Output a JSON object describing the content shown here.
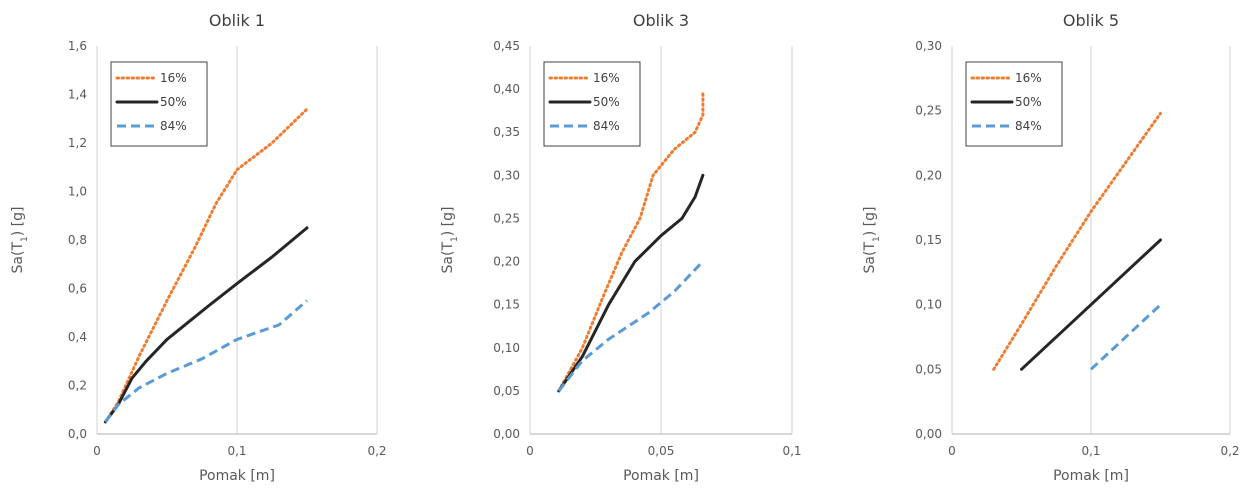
{
  "chart_data": [
    {
      "type": "line",
      "title": "Oblik 1",
      "xlabel": "Pomak [m]",
      "ylabel_main": "Sa(T",
      "ylabel_sub": "1",
      "ylabel_tail": ") [g]",
      "xlim": [
        0,
        0.2
      ],
      "ylim": [
        0,
        1.6
      ],
      "x_ticks": [
        0,
        0.1,
        0.2
      ],
      "x_tick_labels": [
        "0",
        "0,1",
        "0,2"
      ],
      "y_ticks": [
        0,
        0.2,
        0.4,
        0.6,
        0.8,
        1.0,
        1.2,
        1.4,
        1.6
      ],
      "y_tick_labels": [
        "0,0",
        "0,2",
        "0,4",
        "0,6",
        "0,8",
        "1,0",
        "1,2",
        "1,4",
        "1,6"
      ],
      "grid": "vertical",
      "legend_position": "top-left",
      "series": [
        {
          "name": "16%",
          "color": "#ED7D31",
          "style": "dotted",
          "x": [
            0.006,
            0.015,
            0.03,
            0.05,
            0.07,
            0.085,
            0.1,
            0.125,
            0.15
          ],
          "y": [
            0.05,
            0.13,
            0.32,
            0.55,
            0.77,
            0.95,
            1.09,
            1.2,
            1.34
          ]
        },
        {
          "name": "50%",
          "color": "#262626",
          "style": "solid",
          "x": [
            0.006,
            0.015,
            0.025,
            0.035,
            0.05,
            0.065,
            0.08,
            0.1,
            0.125,
            0.15
          ],
          "y": [
            0.05,
            0.12,
            0.23,
            0.3,
            0.39,
            0.46,
            0.53,
            0.62,
            0.73,
            0.85
          ]
        },
        {
          "name": "84%",
          "color": "#5B9BD5",
          "style": "dashed",
          "x": [
            0.006,
            0.015,
            0.03,
            0.05,
            0.075,
            0.1,
            0.13,
            0.15
          ],
          "y": [
            0.05,
            0.12,
            0.19,
            0.25,
            0.31,
            0.39,
            0.45,
            0.55
          ]
        }
      ]
    },
    {
      "type": "line",
      "title": "Oblik 3",
      "xlabel": "Pomak [m]",
      "ylabel_main": "Sa(T",
      "ylabel_sub": "1",
      "ylabel_tail": ") [g]",
      "xlim": [
        0,
        0.1
      ],
      "ylim": [
        0,
        0.45
      ],
      "x_ticks": [
        0,
        0.05,
        0.1
      ],
      "x_tick_labels": [
        "0",
        "0,05",
        "0,1"
      ],
      "y_ticks": [
        0,
        0.05,
        0.1,
        0.15,
        0.2,
        0.25,
        0.3,
        0.35,
        0.4,
        0.45
      ],
      "y_tick_labels": [
        "0,00",
        "0,05",
        "0,10",
        "0,15",
        "0,20",
        "0,25",
        "0,30",
        "0,35",
        "0,40",
        "0,45"
      ],
      "grid": "vertical",
      "legend_position": "top-left",
      "series": [
        {
          "name": "16%",
          "color": "#ED7D31",
          "style": "dotted",
          "x": [
            0.011,
            0.02,
            0.028,
            0.035,
            0.042,
            0.047,
            0.055,
            0.063,
            0.066,
            0.066
          ],
          "y": [
            0.05,
            0.1,
            0.16,
            0.21,
            0.25,
            0.3,
            0.33,
            0.35,
            0.37,
            0.395
          ]
        },
        {
          "name": "50%",
          "color": "#262626",
          "style": "solid",
          "x": [
            0.011,
            0.02,
            0.03,
            0.04,
            0.05,
            0.058,
            0.063,
            0.066
          ],
          "y": [
            0.05,
            0.09,
            0.15,
            0.2,
            0.23,
            0.25,
            0.275,
            0.3
          ]
        },
        {
          "name": "84%",
          "color": "#5B9BD5",
          "style": "dashed",
          "x": [
            0.011,
            0.02,
            0.03,
            0.045,
            0.055,
            0.065
          ],
          "y": [
            0.05,
            0.085,
            0.11,
            0.14,
            0.165,
            0.197
          ]
        }
      ]
    },
    {
      "type": "line",
      "title": "Oblik 5",
      "xlabel": "Pomak [m]",
      "ylabel_main": "Sa(T",
      "ylabel_sub": "1",
      "ylabel_tail": ") [g]",
      "xlim": [
        0,
        0.2
      ],
      "ylim": [
        0,
        0.3
      ],
      "x_ticks": [
        0,
        0.1,
        0.2
      ],
      "x_tick_labels": [
        "0",
        "0,1",
        "0,2"
      ],
      "y_ticks": [
        0,
        0.05,
        0.1,
        0.15,
        0.2,
        0.25,
        0.3
      ],
      "y_tick_labels": [
        "0,00",
        "0,05",
        "0,10",
        "0,15",
        "0,20",
        "0,25",
        "0,30"
      ],
      "grid": "vertical",
      "legend_position": "top-left",
      "series": [
        {
          "name": "16%",
          "color": "#ED7D31",
          "style": "dotted",
          "x": [
            0.03,
            0.05,
            0.075,
            0.1,
            0.15
          ],
          "y": [
            0.05,
            0.085,
            0.13,
            0.172,
            0.248
          ]
        },
        {
          "name": "50%",
          "color": "#262626",
          "style": "solid",
          "x": [
            0.05,
            0.1,
            0.15
          ],
          "y": [
            0.05,
            0.1,
            0.15
          ]
        },
        {
          "name": "84%",
          "color": "#5B9BD5",
          "style": "dashed",
          "x": [
            0.1,
            0.15
          ],
          "y": [
            0.05,
            0.1
          ]
        }
      ]
    }
  ]
}
